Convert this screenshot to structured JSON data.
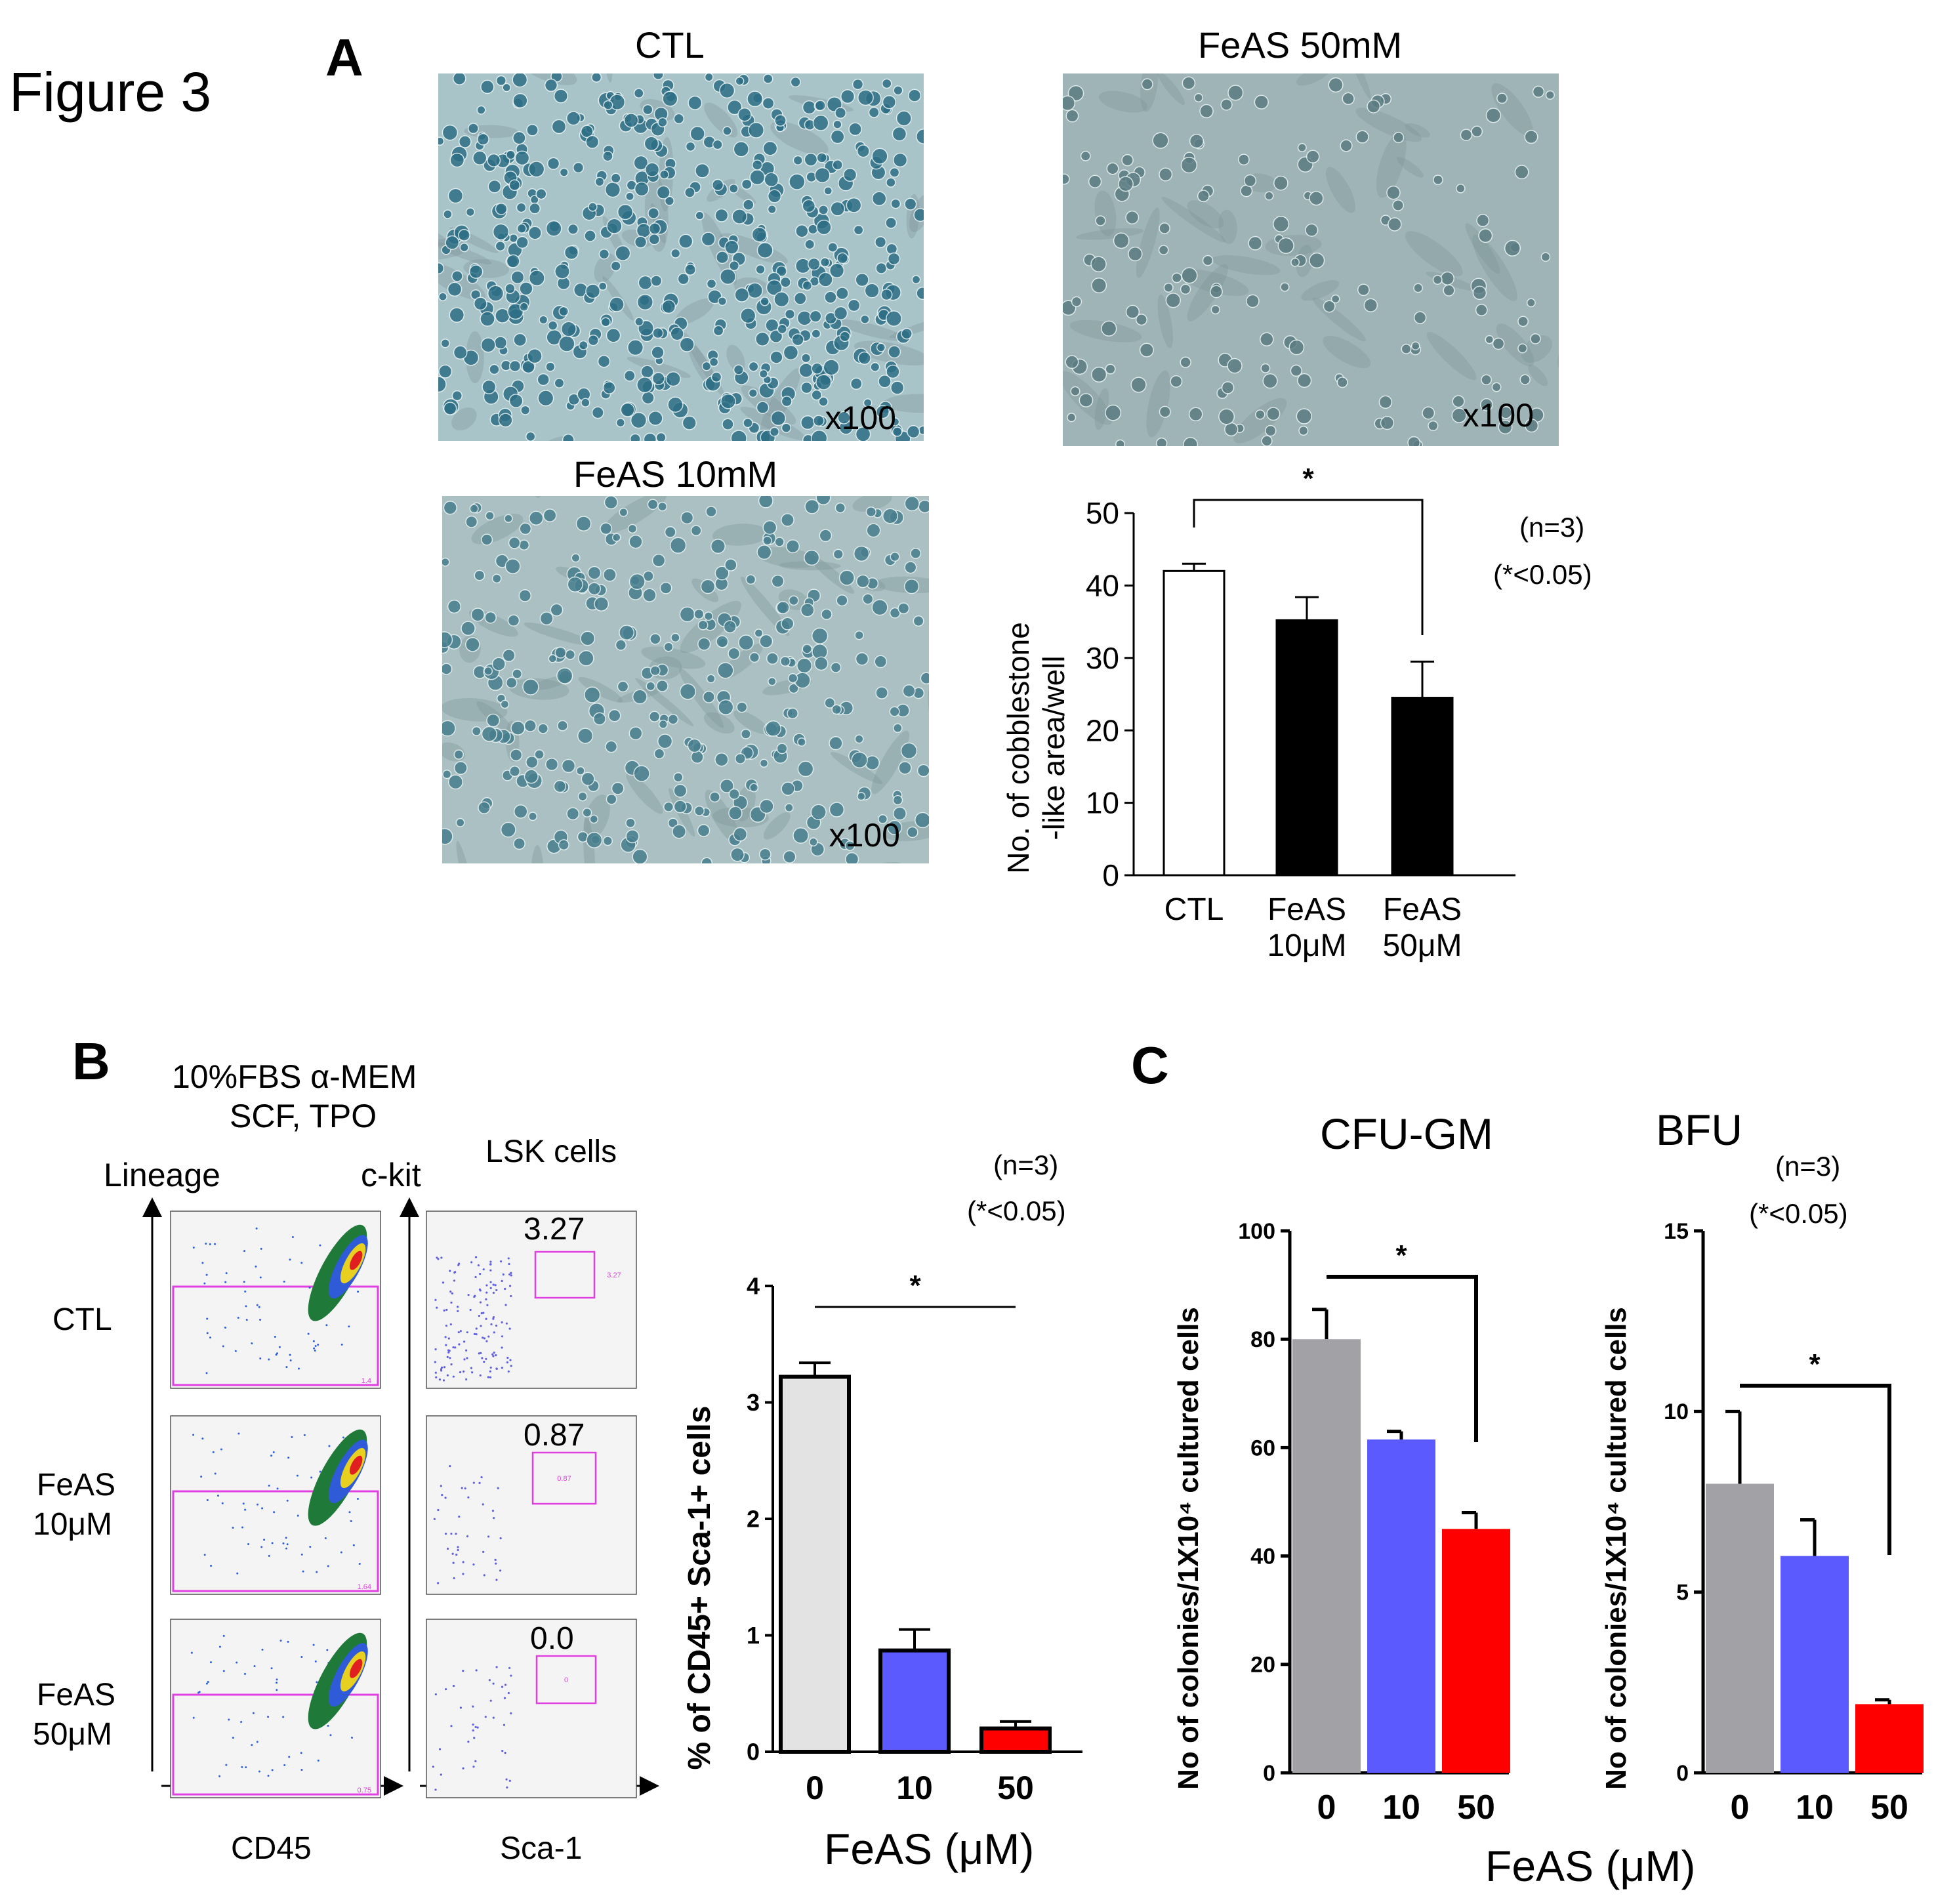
{
  "figure_title": "Figure 3",
  "panel_labels": {
    "a": "A",
    "b": "B",
    "c": "C"
  },
  "micrographs": [
    {
      "title": "CTL",
      "magnification": "x100",
      "base": "#a9c4c9",
      "cell": "#2e6f86",
      "density": 0.8
    },
    {
      "title": "FeAS 50mM",
      "magnification": "x100",
      "base": "#9fb4b6",
      "cell": "#5b7c82",
      "density": 0.25
    },
    {
      "title": "FeAS 10mM",
      "magnification": "x100",
      "base": "#aac0c2",
      "cell": "#477e8d",
      "density": 0.5
    }
  ],
  "panel_b": {
    "medium_line1": "10%FBS α-MEM",
    "medium_line2": "SCF, TPO",
    "lineage_label": "Lineage",
    "ckit_label": "c-kit",
    "lsk_label": "LSK cells",
    "cd45_label": "CD45",
    "sca1_label": "Sca-1",
    "rows": [
      {
        "label1": "CTL",
        "label2": "",
        "lsk_percent": "3.27",
        "gate_small": "3.27",
        "lin_gate_small": "1.4"
      },
      {
        "label1": "FeAS",
        "label2": "10μM",
        "lsk_percent": "0.87",
        "gate_small": "0.87",
        "lin_gate_small": "1.64"
      },
      {
        "label1": "FeAS",
        "label2": "50μM",
        "lsk_percent": "0.0",
        "gate_small": "0",
        "lin_gate_small": "0.75"
      }
    ],
    "n_note": "(n=3)",
    "p_note": "(*<0.05)",
    "xlabel": "FeAS (μM)"
  },
  "panel_c": {
    "title_gm": "CFU-GM",
    "title_bfu": "BFU",
    "n_note": "(n=3)",
    "p_note": "(*<0.05)",
    "xlabel": "FeAS (μM)"
  },
  "chart_data": [
    {
      "type": "bar",
      "title": "",
      "ylabel": "No. of cobblestone -like area/well",
      "ylabel_lines": [
        "No. of cobblestone",
        "-like area/well"
      ],
      "categories": [
        "CTL",
        "FeAS 10μM",
        "FeAS 50μM"
      ],
      "category_lines": [
        [
          "CTL"
        ],
        [
          "FeAS",
          "10μM"
        ],
        [
          "FeAS",
          "50μM"
        ]
      ],
      "values": [
        42,
        35.2,
        24.5
      ],
      "errors": [
        1,
        3.2,
        5
      ],
      "ylim": [
        0,
        50
      ],
      "yticks": [
        0,
        10,
        20,
        30,
        40,
        50
      ],
      "colors": [
        "#ffffff",
        "#000000",
        "#000000"
      ],
      "annotations": [
        "*",
        "(n=3)",
        "(*<0.05)"
      ],
      "significance": {
        "from": 0,
        "to": 2,
        "label": "*"
      },
      "grid": false
    },
    {
      "type": "bar",
      "title": "",
      "ylabel": "% of CD45+ Sca-1+ cells",
      "xlabel": "FeAS (μM)",
      "categories": [
        "0",
        "10",
        "50"
      ],
      "values": [
        3.22,
        0.87,
        0.2
      ],
      "errors": [
        0.12,
        0.18,
        0.06
      ],
      "ylim": [
        0,
        4
      ],
      "yticks": [
        0,
        1,
        2,
        3,
        4
      ],
      "colors": [
        "#e3e3e3",
        "#5a5aff",
        "#ff0000"
      ],
      "significance": {
        "from": 0,
        "to": 2,
        "label": "*"
      },
      "grid": false
    },
    {
      "type": "bar",
      "title": "CFU-GM",
      "ylabel": "No of colonies/1X10⁴ cultured cells",
      "categories": [
        "0",
        "10",
        "50"
      ],
      "values": [
        80,
        61.5,
        45
      ],
      "errors": [
        5.5,
        1.5,
        3
      ],
      "ylim": [
        0,
        100
      ],
      "yticks": [
        0,
        20,
        40,
        60,
        80,
        100
      ],
      "colors": [
        "#a2a2a6",
        "#5a5aff",
        "#ff0000"
      ],
      "significance": {
        "from": 0,
        "to": 2,
        "label": "*"
      },
      "grid": false
    },
    {
      "type": "bar",
      "title": "BFU",
      "ylabel": "No of colonies/1X10⁴ cultured cells",
      "categories": [
        "0",
        "10",
        "50"
      ],
      "values": [
        8,
        6,
        1.9
      ],
      "errors": [
        2,
        1,
        0.12
      ],
      "ylim": [
        0,
        15
      ],
      "yticks": [
        0,
        5,
        10,
        15
      ],
      "colors": [
        "#a2a2a6",
        "#5a5aff",
        "#ff0000"
      ],
      "significance": {
        "from": 0,
        "to": 2,
        "label": "*"
      },
      "grid": false
    }
  ]
}
